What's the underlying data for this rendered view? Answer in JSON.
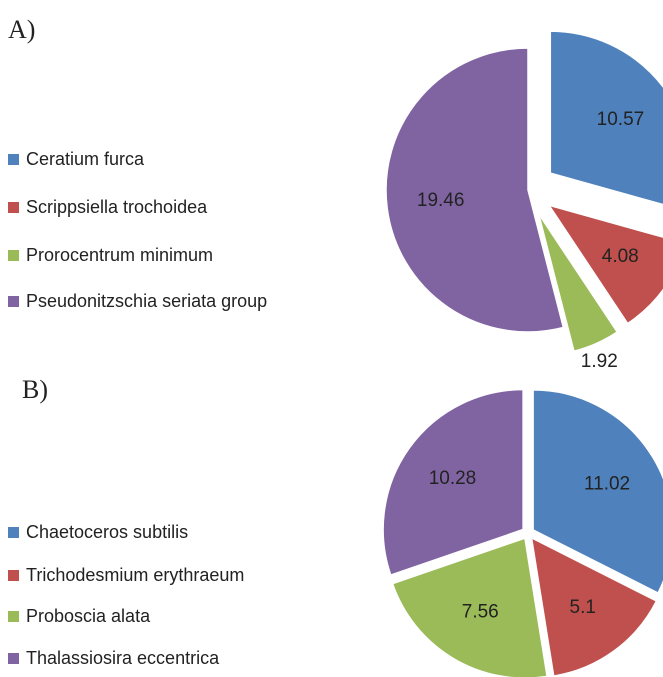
{
  "chart_data": [
    {
      "type": "pie",
      "title": "A)",
      "categories": [
        "Ceratium furca",
        "Scrippsiella trochoidea",
        "Prorocentrum minimum",
        "Pseudonitzschia seriata group"
      ],
      "values": [
        10.57,
        4.08,
        1.92,
        19.46
      ],
      "colors": [
        "#4f81bd",
        "#c0504d",
        "#9bbb59",
        "#8064a2"
      ]
    },
    {
      "type": "pie",
      "title": "B)",
      "categories": [
        "Chaetoceros subtilis",
        "Trichodesmium erythraeum",
        "Proboscia alata",
        "Thalassiosira eccentrica"
      ],
      "values": [
        11.02,
        5.1,
        7.56,
        10.28
      ],
      "colors": [
        "#4f81bd",
        "#c0504d",
        "#9bbb59",
        "#8064a2"
      ]
    }
  ]
}
